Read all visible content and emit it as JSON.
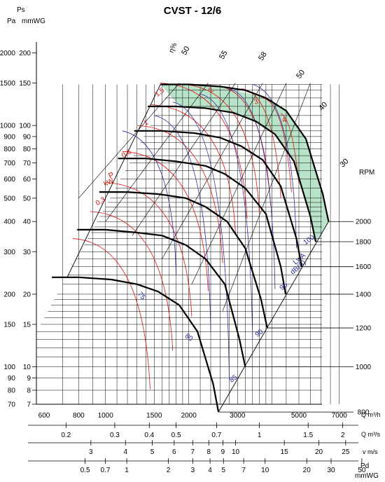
{
  "title": "CVST - 12/6",
  "labels": {
    "ps": "Ps",
    "pa": "Pa",
    "mmwg": "mmWG",
    "rpm": "RPM",
    "efficiency": "η%",
    "power_p": "P",
    "power_kw": "kW",
    "lwa": "LwA",
    "dba": "dB(A)",
    "q_m3h": "Q m³/h",
    "q_m3s": "Q m³/s",
    "vms": "v m/s",
    "pd": "Pd",
    "pd_unit": "mmWG"
  },
  "colors": {
    "fan_curves": "#000000",
    "power_curves": "#e01010",
    "noise_curves": "#2a2aa0",
    "efficiency_lines": "#000000",
    "optimal_zone": "#b8e3c8",
    "grid": "#000000"
  },
  "chart_data": {
    "type": "line",
    "title": "CVST - 12/6",
    "x_scale": "log",
    "y_scale": "log",
    "x_axis": {
      "label": "Q m³/h",
      "range": [
        600,
        8000
      ],
      "tick_labels": [
        "600",
        "800",
        "1000",
        "1500",
        "2000",
        "3000",
        "5000",
        "7000"
      ]
    },
    "y_axis_mmwg": {
      "label": "mmWG",
      "range": [
        7,
        240
      ],
      "tick_labels": [
        "7",
        "8",
        "9",
        "10",
        "15",
        "20",
        "30",
        "40",
        "50",
        "60",
        "70",
        "80",
        "90",
        "100",
        "150",
        "200"
      ]
    },
    "y_axis_pa": {
      "label": "Pa",
      "tick_labels": [
        "70",
        "80",
        "90",
        "100",
        "150",
        "200",
        "300",
        "400",
        "500",
        "600",
        "700",
        "800",
        "900",
        "1000",
        "1500",
        "2000"
      ]
    },
    "secondary_axes": [
      {
        "label": "Q m³/s",
        "ticks": [
          "0.2",
          "0.3",
          "0.4",
          "0.5",
          "0.7",
          "1",
          "1.5",
          "2"
        ]
      },
      {
        "label": "v m/s",
        "ticks": [
          "3",
          "4",
          "5",
          "6",
          "7",
          "8",
          "9",
          "10",
          "15",
          "20",
          "25"
        ]
      },
      {
        "label": "Pd mmWG",
        "ticks": [
          "0.5",
          "0.7",
          "1",
          "2",
          "3",
          "4",
          "5",
          "7",
          "10",
          "20",
          "30",
          "50"
        ]
      }
    ],
    "rpm_labels": [
      "2000",
      "1800",
      "1600",
      "1400",
      "1200",
      "1000",
      "800"
    ],
    "efficiency_labels": [
      "50",
      "55",
      "58",
      "50",
      "40",
      "30"
    ],
    "power_labels": [
      "1,5",
      "2",
      "3",
      "4",
      "1",
      "0,6",
      "0,3"
    ],
    "noise_labels": [
      "75",
      "80",
      "85",
      "90",
      "95",
      "100"
    ],
    "series": [
      {
        "name": "2000",
        "x": [
          1580,
          2000,
          2600,
          3200,
          3800,
          4500,
          5300,
          6100,
          6400
        ],
        "y": [
          148,
          148,
          145,
          140,
          130,
          115,
          88,
          52,
          40
        ]
      },
      {
        "name": "1800",
        "x": [
          1420,
          1800,
          2300,
          2900,
          3500,
          4100,
          4800,
          5500,
          5750
        ],
        "y": [
          120,
          120,
          118,
          113,
          104,
          92,
          71,
          42,
          33
        ]
      },
      {
        "name": "1600",
        "x": [
          1270,
          1600,
          2100,
          2600,
          3100,
          3700,
          4300,
          4900,
          5120
        ],
        "y": [
          95,
          95,
          93,
          89,
          82,
          72,
          56,
          34,
          26
        ]
      },
      {
        "name": "1400",
        "x": [
          1110,
          1400,
          1800,
          2300,
          2700,
          3200,
          3800,
          4300,
          4480
        ],
        "y": [
          73,
          73,
          71,
          68,
          63,
          55,
          43,
          26,
          20
        ]
      },
      {
        "name": "1200",
        "x": [
          950,
          1200,
          1550,
          1950,
          2300,
          2750,
          3200,
          3650,
          3840
        ],
        "y": [
          53,
          53,
          52,
          50,
          46,
          40,
          31,
          19,
          14.5
        ]
      },
      {
        "name": "1000",
        "x": [
          790,
          1000,
          1300,
          1600,
          1950,
          2300,
          2700,
          3050,
          3200
        ],
        "y": [
          37,
          37,
          36,
          35,
          32,
          28,
          22,
          13,
          10
        ]
      },
      {
        "name": "800",
        "x": [
          640,
          800,
          1050,
          1300,
          1550,
          1850,
          2150,
          2450,
          2560
        ],
        "y": [
          23.5,
          23.5,
          23,
          22,
          20.5,
          18,
          14,
          8.5,
          6.5
        ]
      }
    ]
  }
}
